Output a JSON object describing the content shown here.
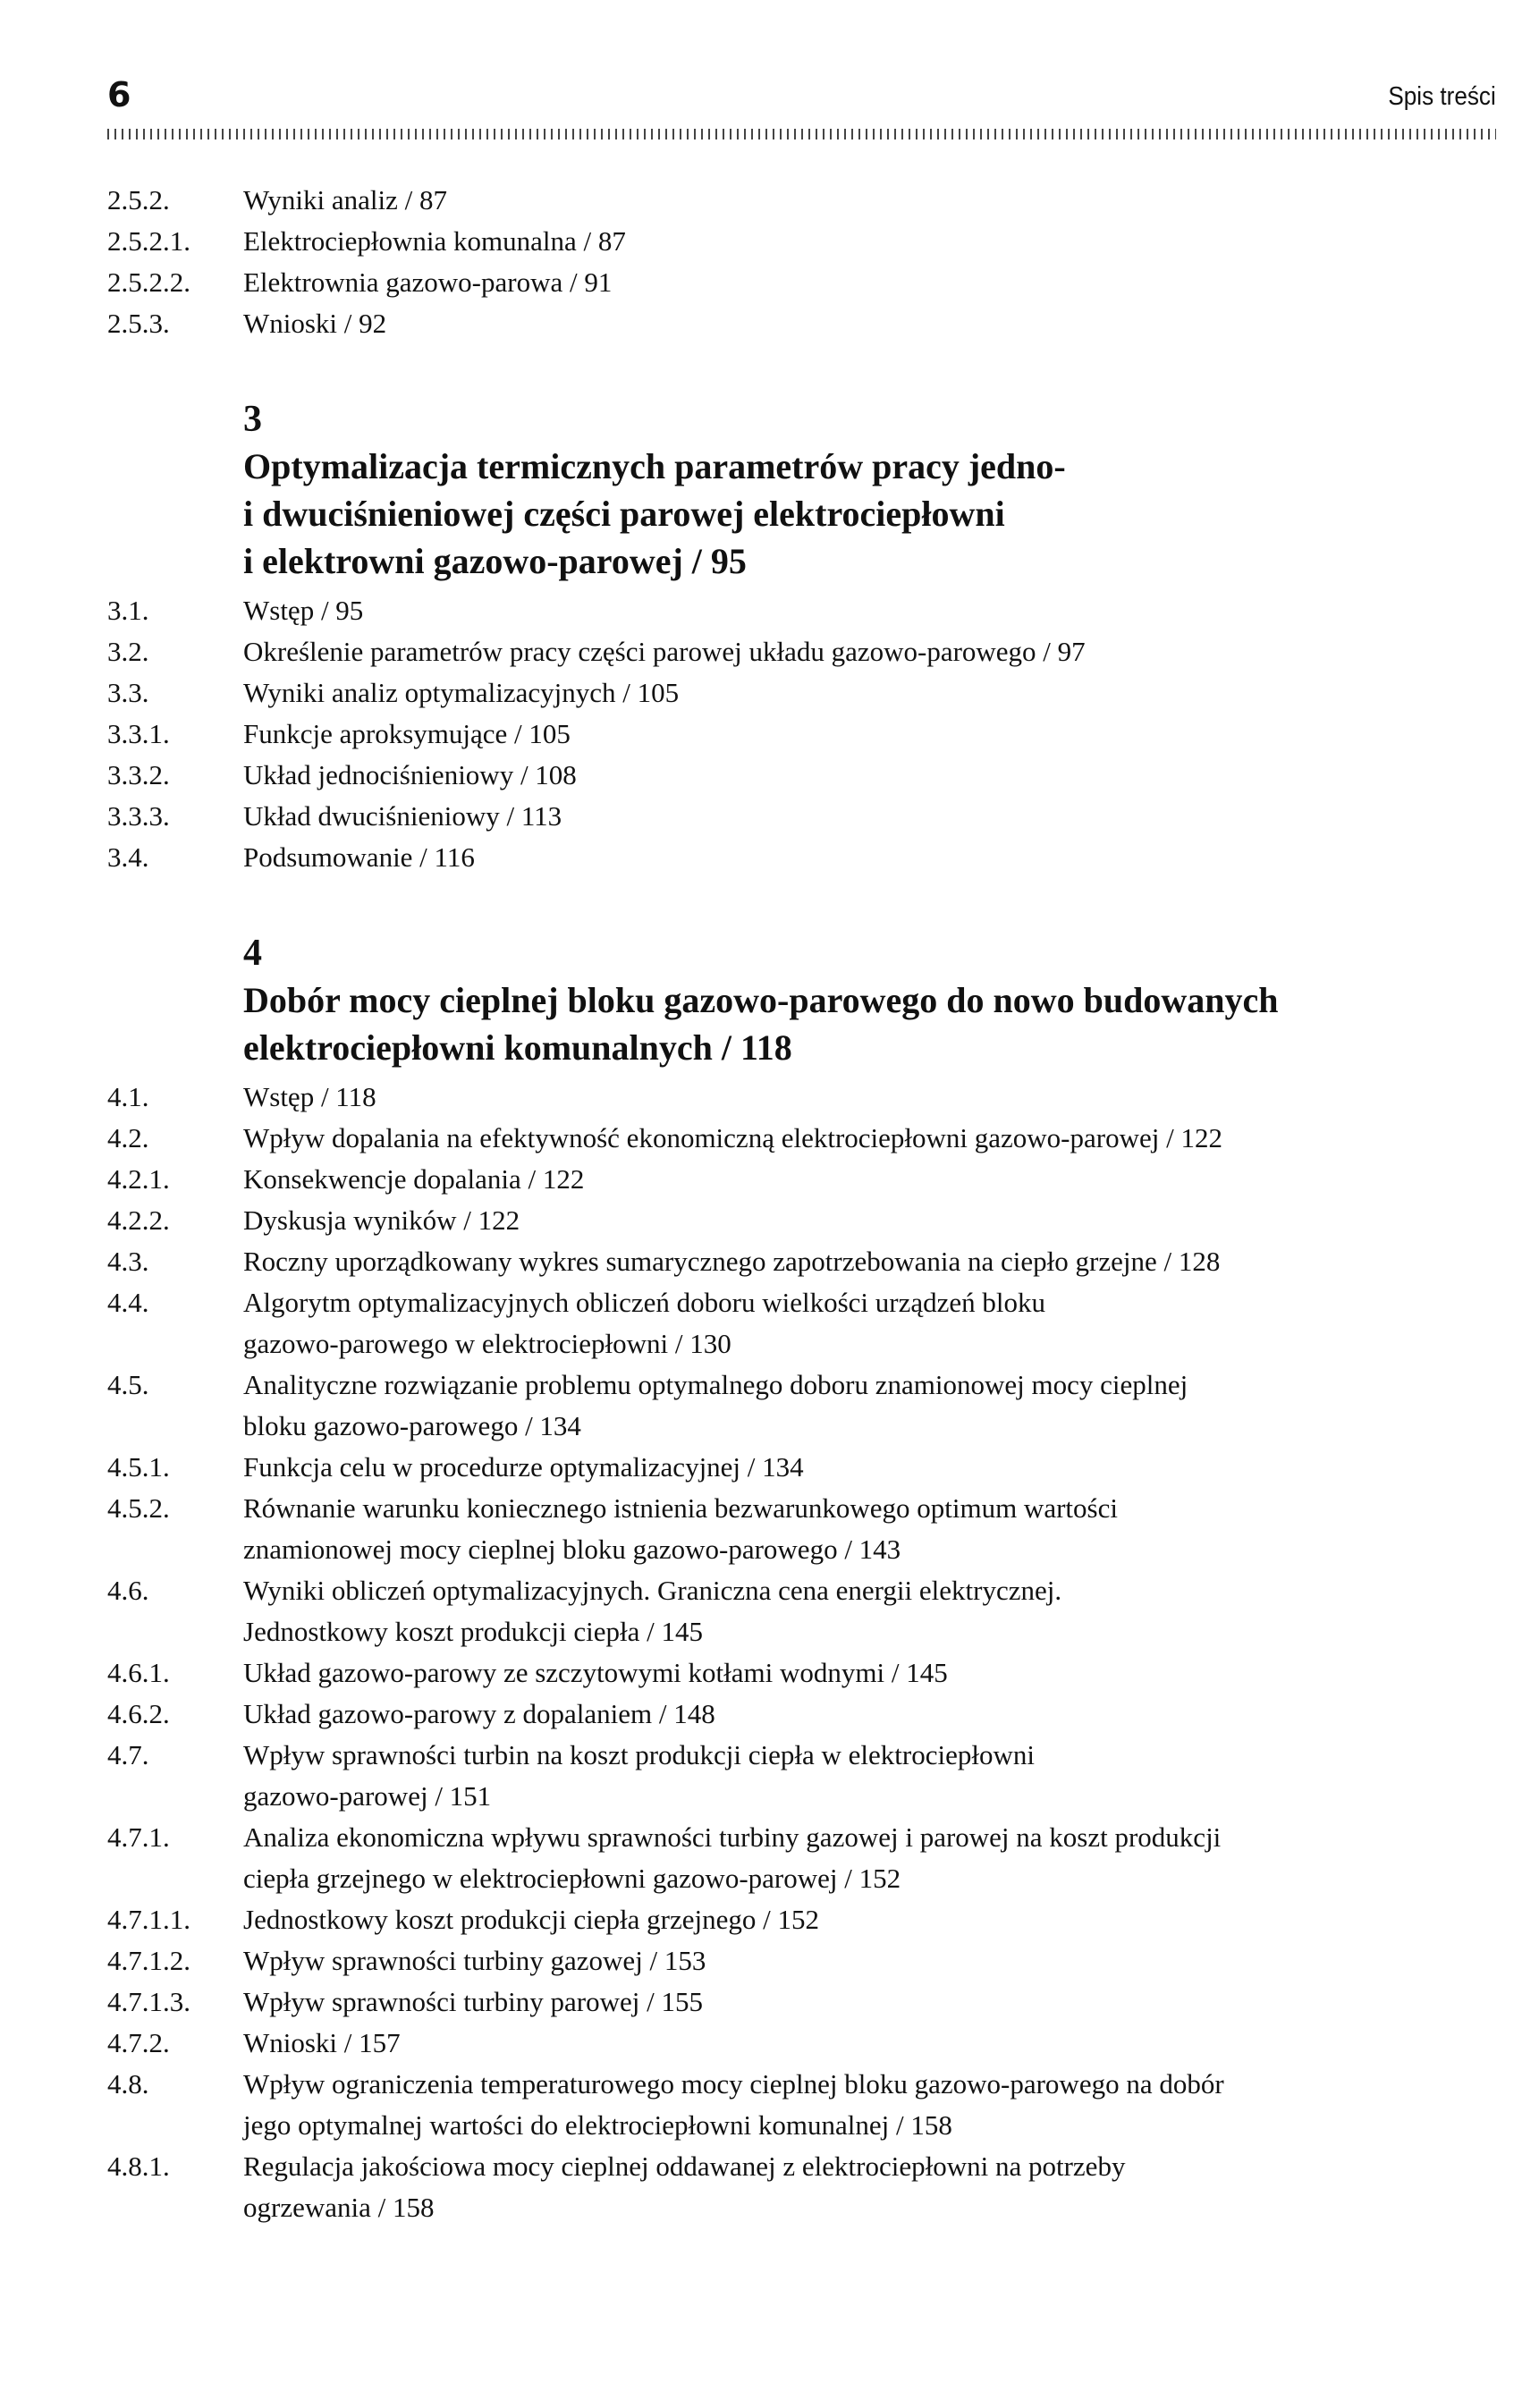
{
  "header": {
    "page_number": "6",
    "running_title": "Spis treści"
  },
  "blocks": [
    {
      "type": "entries",
      "items": [
        {
          "num": "2.5.2.",
          "lines": [
            "Wyniki analiz / 87"
          ]
        },
        {
          "num": "2.5.2.1.",
          "lines": [
            "Elektrociepłownia komunalna / 87"
          ]
        },
        {
          "num": "2.5.2.2.",
          "lines": [
            "Elektrownia gazowo-parowa / 91"
          ]
        },
        {
          "num": "2.5.3.",
          "lines": [
            "Wnioski / 92"
          ]
        }
      ]
    },
    {
      "type": "chapter",
      "num": "3",
      "lines": [
        "Optymalizacja termicznych parametrów pracy jedno-",
        "i dwuciśnieniowej części parowej elektrociepłowni",
        "i elektrowni gazowo-parowej / 95"
      ]
    },
    {
      "type": "entries",
      "items": [
        {
          "num": "3.1.",
          "lines": [
            "Wstęp / 95"
          ]
        },
        {
          "num": "3.2.",
          "lines": [
            "Określenie parametrów pracy części parowej układu gazowo-parowego / 97"
          ]
        },
        {
          "num": "3.3.",
          "lines": [
            "Wyniki analiz optymalizacyjnych / 105"
          ]
        },
        {
          "num": "3.3.1.",
          "lines": [
            "Funkcje aproksymujące / 105"
          ]
        },
        {
          "num": "3.3.2.",
          "lines": [
            "Układ jednociśnieniowy / 108"
          ]
        },
        {
          "num": "3.3.3.",
          "lines": [
            "Układ dwuciśnieniowy / 113"
          ]
        },
        {
          "num": "3.4.",
          "lines": [
            "Podsumowanie / 116"
          ]
        }
      ]
    },
    {
      "type": "chapter",
      "num": "4",
      "lines": [
        "Dobór mocy cieplnej bloku gazowo-parowego do nowo budowanych",
        "elektrociepłowni komunalnych / 118"
      ]
    },
    {
      "type": "entries",
      "items": [
        {
          "num": "4.1.",
          "lines": [
            "Wstęp / 118"
          ]
        },
        {
          "num": "4.2.",
          "lines": [
            "Wpływ dopalania na efektywność ekonomiczną elektrociepłowni gazowo-parowej / 122"
          ]
        },
        {
          "num": "4.2.1.",
          "lines": [
            "Konsekwencje dopalania / 122"
          ]
        },
        {
          "num": "4.2.2.",
          "lines": [
            "Dyskusja wyników / 122"
          ]
        },
        {
          "num": "4.3.",
          "lines": [
            "Roczny uporządkowany wykres sumarycznego zapotrzebowania na ciepło grzejne / 128"
          ]
        },
        {
          "num": "4.4.",
          "lines": [
            "Algorytm optymalizacyjnych obliczeń doboru wielkości urządzeń bloku",
            "gazowo-parowego w elektrociepłowni / 130"
          ]
        },
        {
          "num": "4.5.",
          "lines": [
            "Analityczne rozwiązanie problemu optymalnego doboru znamionowej mocy cieplnej",
            "bloku gazowo-parowego / 134"
          ]
        },
        {
          "num": "4.5.1.",
          "lines": [
            "Funkcja celu w procedurze optymalizacyjnej / 134"
          ]
        },
        {
          "num": "4.5.2.",
          "lines": [
            "Równanie warunku koniecznego istnienia bezwarunkowego optimum wartości",
            "znamionowej mocy cieplnej bloku gazowo-parowego / 143"
          ]
        },
        {
          "num": "4.6.",
          "lines": [
            "Wyniki obliczeń optymalizacyjnych. Graniczna cena energii elektrycznej.",
            "Jednostkowy koszt produkcji ciepła / 145"
          ]
        },
        {
          "num": "4.6.1.",
          "lines": [
            "Układ gazowo-parowy ze szczytowymi kotłami wodnymi / 145"
          ]
        },
        {
          "num": "4.6.2.",
          "lines": [
            "Układ gazowo-parowy z dopalaniem / 148"
          ]
        },
        {
          "num": "4.7.",
          "lines": [
            "Wpływ sprawności turbin na koszt produkcji ciepła w elektrociepłowni",
            "gazowo-parowej / 151"
          ]
        },
        {
          "num": "4.7.1.",
          "lines": [
            "Analiza ekonomiczna wpływu sprawności turbiny gazowej i parowej na koszt produkcji",
            "ciepła grzejnego w elektrociepłowni gazowo-parowej / 152"
          ]
        },
        {
          "num": "4.7.1.1.",
          "lines": [
            "Jednostkowy koszt produkcji ciepła grzejnego / 152"
          ]
        },
        {
          "num": "4.7.1.2.",
          "lines": [
            "Wpływ sprawności turbiny gazowej / 153"
          ]
        },
        {
          "num": "4.7.1.3.",
          "lines": [
            "Wpływ sprawności turbiny parowej / 155"
          ]
        },
        {
          "num": "4.7.2.",
          "lines": [
            "Wnioski / 157"
          ]
        },
        {
          "num": "4.8.",
          "lines": [
            "Wpływ ograniczenia temperaturowego mocy cieplnej bloku gazowo-parowego na dobór",
            "jego optymalnej wartości do elektrociepłowni komunalnej / 158"
          ]
        },
        {
          "num": "4.8.1.",
          "lines": [
            "Regulacja jakościowa mocy cieplnej oddawanej z elektrociepłowni na potrzeby",
            "ogrzewania / 158"
          ]
        }
      ]
    }
  ]
}
